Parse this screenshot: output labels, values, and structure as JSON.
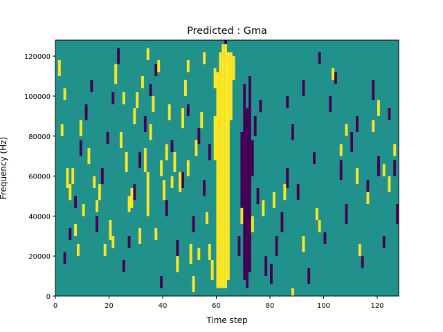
{
  "chart_data": {
    "type": "heatmap",
    "title": "Predicted : Gma",
    "xlabel": "Time step",
    "ylabel": "Frequency (Hz)",
    "xlim": [
      0,
      128
    ],
    "ylim": [
      0,
      128000
    ],
    "x_ticks": [
      0,
      20,
      40,
      60,
      80,
      100,
      120
    ],
    "y_ticks": [
      0,
      20000,
      40000,
      60000,
      80000,
      100000,
      120000
    ],
    "x_tick_labels": [
      "0",
      "20",
      "40",
      "60",
      "80",
      "100",
      "120"
    ],
    "y_tick_labels": [
      "0",
      "20000",
      "40000",
      "60000",
      "80000",
      "100000",
      "120000"
    ],
    "n_time_steps": 128,
    "n_freq_bins": 64,
    "colors": {
      "background": "#21918c",
      "high": "#fde725",
      "low": "#440154"
    },
    "high_cells": [
      [
        60,
        2,
        55
      ],
      [
        61,
        2,
        60
      ],
      [
        62,
        2,
        62
      ],
      [
        63,
        2,
        62
      ],
      [
        64,
        4,
        60
      ],
      [
        65,
        44,
        60
      ],
      [
        66,
        54,
        59
      ],
      [
        59,
        34,
        44
      ],
      [
        59,
        52,
        56
      ],
      [
        31,
        13,
        16
      ],
      [
        34,
        20,
        30
      ],
      [
        40,
        24,
        28
      ],
      [
        46,
        26,
        30
      ],
      [
        47,
        42,
        46
      ],
      [
        50,
        8,
        12
      ],
      [
        26,
        31,
        35
      ],
      [
        20,
        14,
        18
      ],
      [
        14,
        27,
        29
      ],
      [
        22,
        53,
        57
      ],
      [
        24,
        37,
        40
      ],
      [
        30,
        47,
        50
      ],
      [
        18,
        10,
        12
      ],
      [
        33,
        31,
        36
      ],
      [
        36,
        46,
        49
      ],
      [
        44,
        31,
        35
      ],
      [
        49,
        30,
        33
      ],
      [
        52,
        35,
        38
      ],
      [
        4,
        27,
        31
      ],
      [
        5,
        24,
        27
      ],
      [
        6,
        28,
        31
      ],
      [
        9,
        40,
        43
      ],
      [
        12,
        33,
        36
      ],
      [
        16,
        24,
        27
      ],
      [
        25,
        48,
        50
      ],
      [
        28,
        22,
        26
      ],
      [
        34,
        59,
        61
      ],
      [
        38,
        56,
        58
      ],
      [
        48,
        50,
        53
      ],
      [
        55,
        58,
        60
      ],
      [
        58,
        4,
        8
      ],
      [
        57,
        9,
        12
      ],
      [
        88,
        0,
        1
      ],
      [
        92,
        11,
        14
      ],
      [
        98,
        16,
        18
      ],
      [
        106,
        35,
        37
      ],
      [
        108,
        40,
        42
      ],
      [
        112,
        28,
        31
      ],
      [
        116,
        23,
        25
      ],
      [
        120,
        45,
        48
      ],
      [
        122,
        30,
        32
      ],
      [
        124,
        26,
        29
      ],
      [
        126,
        35,
        37
      ],
      [
        118,
        41,
        43
      ],
      [
        113,
        10,
        12
      ],
      [
        103,
        54,
        56
      ],
      [
        97,
        19,
        21
      ],
      [
        85,
        24,
        27
      ],
      [
        81,
        22,
        25
      ],
      [
        77,
        20,
        23
      ],
      [
        73,
        16,
        19
      ],
      [
        69,
        18,
        21
      ],
      [
        7,
        15,
        17
      ],
      [
        2,
        40,
        42
      ],
      [
        1,
        55,
        58
      ],
      [
        3,
        49,
        51
      ],
      [
        8,
        10,
        12
      ],
      [
        10,
        20,
        22
      ],
      [
        15,
        21,
        23
      ],
      [
        21,
        12,
        14
      ],
      [
        27,
        21,
        24
      ],
      [
        29,
        43,
        46
      ],
      [
        32,
        52,
        54
      ],
      [
        35,
        39,
        42
      ],
      [
        37,
        14,
        16
      ],
      [
        39,
        30,
        33
      ],
      [
        41,
        34,
        37
      ],
      [
        42,
        44,
        47
      ],
      [
        43,
        27,
        29
      ],
      [
        45,
        6,
        9
      ],
      [
        49,
        56,
        58
      ],
      [
        51,
        1,
        4
      ],
      [
        53,
        9,
        11
      ],
      [
        54,
        42,
        45
      ],
      [
        56,
        18,
        20
      ]
    ],
    "low_cells": [
      [
        70,
        4,
        52
      ],
      [
        71,
        2,
        46
      ],
      [
        72,
        6,
        54
      ],
      [
        69,
        18,
        40
      ],
      [
        73,
        30,
        38
      ],
      [
        68,
        10,
        14
      ],
      [
        74,
        40,
        44
      ],
      [
        76,
        46,
        48
      ],
      [
        78,
        5,
        9
      ],
      [
        80,
        3,
        7
      ],
      [
        82,
        10,
        14
      ],
      [
        84,
        16,
        20
      ],
      [
        86,
        27,
        31
      ],
      [
        86,
        47,
        49
      ],
      [
        88,
        39,
        42
      ],
      [
        90,
        24,
        27
      ],
      [
        92,
        50,
        53
      ],
      [
        94,
        3,
        6
      ],
      [
        96,
        33,
        35
      ],
      [
        98,
        58,
        60
      ],
      [
        100,
        13,
        15
      ],
      [
        102,
        46,
        49
      ],
      [
        104,
        53,
        55
      ],
      [
        106,
        29,
        33
      ],
      [
        108,
        18,
        22
      ],
      [
        110,
        36,
        40
      ],
      [
        112,
        41,
        44
      ],
      [
        114,
        7,
        9
      ],
      [
        116,
        26,
        28
      ],
      [
        118,
        49,
        53
      ],
      [
        120,
        30,
        34
      ],
      [
        122,
        12,
        14
      ],
      [
        124,
        44,
        46
      ],
      [
        126,
        30,
        33
      ],
      [
        127,
        18,
        22
      ],
      [
        3,
        8,
        10
      ],
      [
        5,
        14,
        16
      ],
      [
        7,
        22,
        24
      ],
      [
        9,
        35,
        38
      ],
      [
        11,
        44,
        47
      ],
      [
        13,
        51,
        53
      ],
      [
        15,
        16,
        19
      ],
      [
        17,
        28,
        31
      ],
      [
        19,
        38,
        40
      ],
      [
        21,
        48,
        50
      ],
      [
        23,
        58,
        61
      ],
      [
        25,
        6,
        8
      ],
      [
        27,
        12,
        14
      ],
      [
        29,
        24,
        27
      ],
      [
        31,
        32,
        35
      ],
      [
        33,
        41,
        44
      ],
      [
        35,
        50,
        52
      ],
      [
        37,
        55,
        57
      ],
      [
        39,
        2,
        4
      ],
      [
        41,
        20,
        23
      ],
      [
        43,
        36,
        38
      ],
      [
        45,
        10,
        13
      ],
      [
        47,
        27,
        30
      ],
      [
        49,
        45,
        47
      ],
      [
        51,
        16,
        19
      ],
      [
        53,
        38,
        41
      ],
      [
        55,
        25,
        28
      ],
      [
        57,
        34,
        37
      ],
      [
        63,
        61,
        63
      ],
      [
        75,
        23,
        26
      ]
    ]
  }
}
